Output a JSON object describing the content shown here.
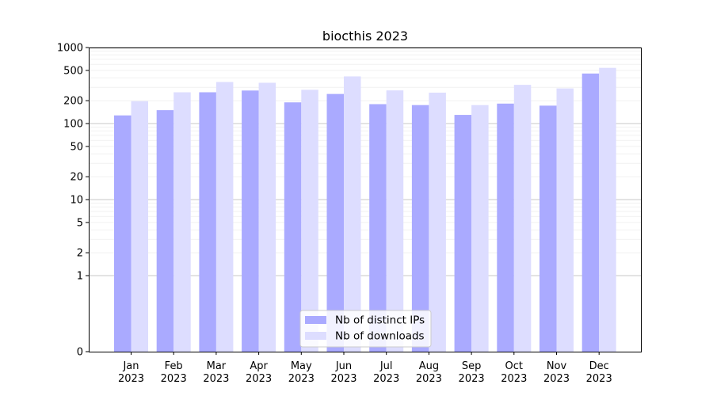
{
  "chart_data": {
    "type": "bar",
    "title": "biocthis 2023",
    "xlabel": "",
    "ylabel": "",
    "y_scale": "symlog",
    "ylim": [
      0,
      1000
    ],
    "yticks": [
      0,
      1,
      2,
      5,
      10,
      20,
      50,
      100,
      200,
      500,
      1000
    ],
    "yticklabels": [
      "0",
      "1",
      "2",
      "5",
      "10",
      "20",
      "50",
      "100",
      "200",
      "500",
      "1000"
    ],
    "grid": true,
    "legend_position": "lower-center",
    "categories": [
      {
        "month": "Jan",
        "year": "2023"
      },
      {
        "month": "Feb",
        "year": "2023"
      },
      {
        "month": "Mar",
        "year": "2023"
      },
      {
        "month": "Apr",
        "year": "2023"
      },
      {
        "month": "May",
        "year": "2023"
      },
      {
        "month": "Jun",
        "year": "2023"
      },
      {
        "month": "Jul",
        "year": "2023"
      },
      {
        "month": "Aug",
        "year": "2023"
      },
      {
        "month": "Sep",
        "year": "2023"
      },
      {
        "month": "Oct",
        "year": "2023"
      },
      {
        "month": "Nov",
        "year": "2023"
      },
      {
        "month": "Dec",
        "year": "2023"
      }
    ],
    "series": [
      {
        "name": "Nb of distinct IPs",
        "color": "#aaaaff",
        "values": [
          128,
          150,
          258,
          272,
          190,
          245,
          180,
          175,
          130,
          183,
          172,
          455
        ]
      },
      {
        "name": "Nb of downloads",
        "color": "#ddddff",
        "values": [
          197,
          258,
          352,
          344,
          278,
          417,
          273,
          255,
          175,
          323,
          290,
          540
        ]
      }
    ]
  }
}
